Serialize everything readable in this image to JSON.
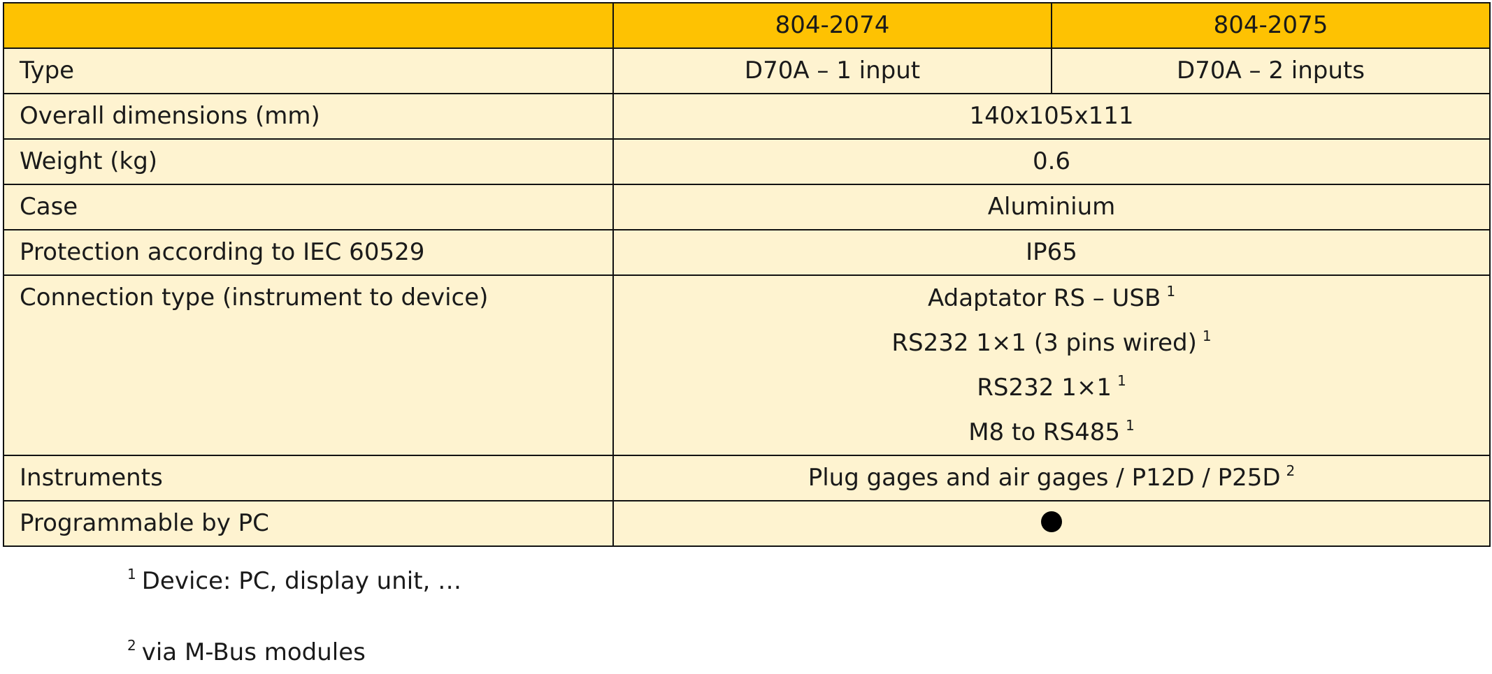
{
  "header": {
    "blank": "",
    "col1": "804-2074",
    "col2": "804-2075"
  },
  "rows": {
    "type": {
      "label": "Type",
      "col1": "D70A – 1 input",
      "col2": "D70A – 2 inputs"
    },
    "dimensions": {
      "label": "Overall dimensions (mm)",
      "value": "140x105x111"
    },
    "weight": {
      "label": "Weight (kg)",
      "value": "0.6"
    },
    "case": {
      "label": "Case",
      "value": "Aluminium"
    },
    "protection": {
      "label": "Protection according to IEC 60529",
      "value": "IP65"
    },
    "connection": {
      "label": "Connection type (instrument to device)",
      "lines": [
        {
          "text": "Adaptator RS – USB",
          "note": "1"
        },
        {
          "text": "RS232 1×1 (3 pins wired)",
          "note": "1"
        },
        {
          "text": "RS232 1×1",
          "note": "1"
        },
        {
          "text": "M8 to RS485",
          "note": "1"
        }
      ]
    },
    "instruments": {
      "label": "Instruments",
      "value": "Plug gages and air gages / P12D /  P25D",
      "note": "2"
    },
    "programmable": {
      "label": "Programmable by PC",
      "icon": "filled-circle-icon",
      "value": true
    }
  },
  "footnotes": [
    {
      "mark": "1",
      "text": "Device: PC, display unit, …"
    },
    {
      "mark": "2",
      "text": "via M-Bus modules"
    }
  ],
  "colors": {
    "header_bg": "#fec202",
    "body_bg": "#fef3d0",
    "border": "#111111"
  }
}
